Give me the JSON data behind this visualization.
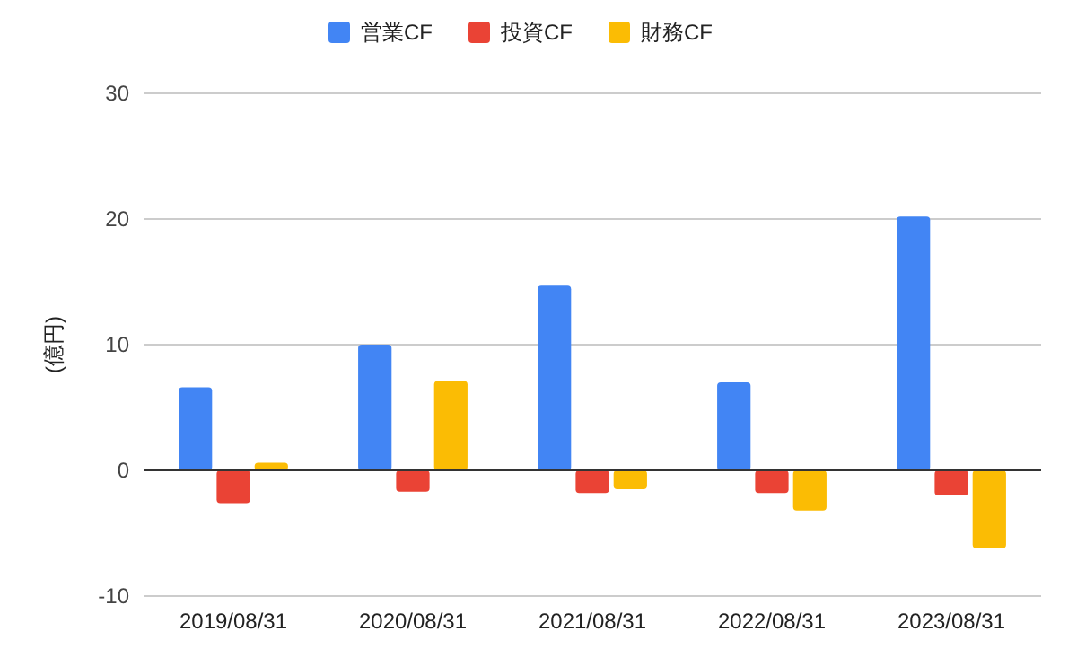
{
  "chart_data": {
    "type": "bar",
    "ylabel": "(億円)",
    "categories": [
      "2019/08/31",
      "2020/08/31",
      "2021/08/31",
      "2022/08/31",
      "2023/08/31"
    ],
    "series": [
      {
        "name": "営業CF",
        "color": "#4285f4",
        "values": [
          6.6,
          10.0,
          14.7,
          7.0,
          20.2
        ]
      },
      {
        "name": "投資CF",
        "color": "#ea4335",
        "values": [
          -2.6,
          -1.7,
          -1.8,
          -1.8,
          -2.0
        ]
      },
      {
        "name": "財務CF",
        "color": "#fbbc04",
        "values": [
          0.6,
          7.1,
          -1.5,
          -3.2,
          -6.2
        ]
      }
    ],
    "ylim": [
      -10,
      30
    ],
    "yticks": [
      -10,
      0,
      10,
      20,
      30
    ],
    "grid": "y",
    "legend": "top"
  }
}
